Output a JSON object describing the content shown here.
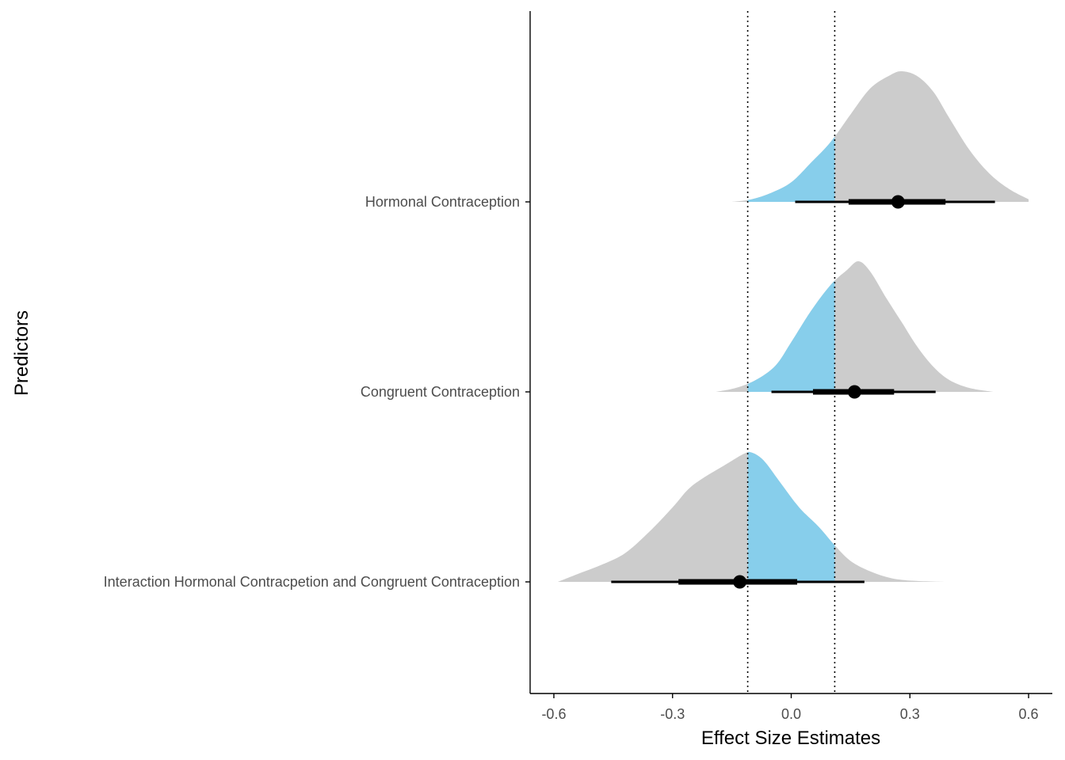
{
  "chart_data": {
    "type": "halfeye",
    "xlabel": "Effect Size Estimates",
    "ylabel": "Predictors",
    "xlim": [
      -0.66,
      0.66
    ],
    "x_ticks": [
      -0.6,
      -0.3,
      0.0,
      0.3,
      0.6
    ],
    "x_tick_labels": [
      "-0.6",
      "-0.3",
      "0.0",
      "0.3",
      "0.6"
    ],
    "rope": [
      -0.11,
      0.11
    ],
    "colors": {
      "density": "#cccccc",
      "rope": "#87ceeb",
      "interval": "#000000",
      "rope_line": "#000000"
    },
    "grid": false,
    "legend": "none",
    "predictors": [
      {
        "label": "Hormonal Contraception",
        "point": 0.27,
        "interval_inner": [
          0.145,
          0.39
        ],
        "interval_outer": [
          0.01,
          0.515
        ],
        "density": [
          [
            -0.15,
            0.0
          ],
          [
            -0.1,
            0.02
          ],
          [
            -0.05,
            0.07
          ],
          [
            0.0,
            0.15
          ],
          [
            0.05,
            0.3
          ],
          [
            0.1,
            0.46
          ],
          [
            0.15,
            0.67
          ],
          [
            0.2,
            0.87
          ],
          [
            0.25,
            0.97
          ],
          [
            0.28,
            1.0
          ],
          [
            0.32,
            0.96
          ],
          [
            0.36,
            0.84
          ],
          [
            0.4,
            0.64
          ],
          [
            0.45,
            0.4
          ],
          [
            0.5,
            0.22
          ],
          [
            0.55,
            0.1
          ],
          [
            0.6,
            0.02
          ]
        ]
      },
      {
        "label": "Congruent Contraception",
        "point": 0.16,
        "interval_inner": [
          0.055,
          0.26
        ],
        "interval_outer": [
          -0.05,
          0.365
        ],
        "density": [
          [
            -0.19,
            0.0
          ],
          [
            -0.14,
            0.03
          ],
          [
            -0.09,
            0.09
          ],
          [
            -0.04,
            0.2
          ],
          [
            0.0,
            0.38
          ],
          [
            0.05,
            0.62
          ],
          [
            0.1,
            0.82
          ],
          [
            0.14,
            0.93
          ],
          [
            0.17,
            1.0
          ],
          [
            0.2,
            0.92
          ],
          [
            0.24,
            0.72
          ],
          [
            0.28,
            0.53
          ],
          [
            0.32,
            0.34
          ],
          [
            0.36,
            0.19
          ],
          [
            0.4,
            0.09
          ],
          [
            0.45,
            0.03
          ],
          [
            0.51,
            0.0
          ]
        ]
      },
      {
        "label": "Interaction Hormonal Contracpetion and Congruent Contraception",
        "point": -0.13,
        "interval_inner": [
          -0.285,
          0.015
        ],
        "interval_outer": [
          -0.455,
          0.185
        ],
        "density": [
          [
            -0.59,
            0.0
          ],
          [
            -0.54,
            0.06
          ],
          [
            -0.48,
            0.13
          ],
          [
            -0.42,
            0.22
          ],
          [
            -0.36,
            0.38
          ],
          [
            -0.3,
            0.57
          ],
          [
            -0.26,
            0.71
          ],
          [
            -0.22,
            0.8
          ],
          [
            -0.17,
            0.89
          ],
          [
            -0.12,
            0.98
          ],
          [
            -0.1,
            0.99
          ],
          [
            -0.07,
            0.93
          ],
          [
            -0.03,
            0.77
          ],
          [
            0.02,
            0.57
          ],
          [
            0.07,
            0.42
          ],
          [
            0.11,
            0.28
          ],
          [
            0.15,
            0.16
          ],
          [
            0.2,
            0.08
          ],
          [
            0.25,
            0.03
          ],
          [
            0.3,
            0.01
          ],
          [
            0.39,
            0.0
          ]
        ]
      }
    ]
  }
}
